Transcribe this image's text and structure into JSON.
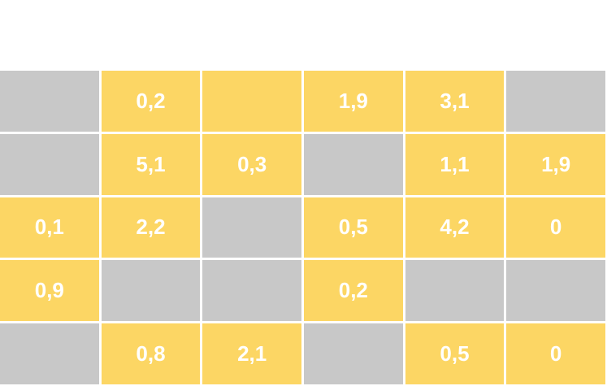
{
  "colors": {
    "filled": "#FCD664",
    "empty": "#C8C8C8"
  },
  "rows": [
    [
      {
        "filled": false,
        "value": ""
      },
      {
        "filled": true,
        "value": "0,2"
      },
      {
        "filled": true,
        "value": ""
      },
      {
        "filled": true,
        "value": "1,9"
      },
      {
        "filled": true,
        "value": "3,1"
      },
      {
        "filled": false,
        "value": ""
      }
    ],
    [
      {
        "filled": false,
        "value": ""
      },
      {
        "filled": true,
        "value": "5,1"
      },
      {
        "filled": true,
        "value": "0,3"
      },
      {
        "filled": false,
        "value": ""
      },
      {
        "filled": true,
        "value": "1,1"
      },
      {
        "filled": true,
        "value": "1,9"
      }
    ],
    [
      {
        "filled": true,
        "value": "0,1"
      },
      {
        "filled": true,
        "value": "2,2"
      },
      {
        "filled": false,
        "value": ""
      },
      {
        "filled": true,
        "value": "0,5"
      },
      {
        "filled": true,
        "value": "4,2"
      },
      {
        "filled": true,
        "value": "0"
      }
    ],
    [
      {
        "filled": true,
        "value": "0,9"
      },
      {
        "filled": false,
        "value": ""
      },
      {
        "filled": false,
        "value": ""
      },
      {
        "filled": true,
        "value": "0,2"
      },
      {
        "filled": false,
        "value": ""
      },
      {
        "filled": false,
        "value": ""
      }
    ],
    [
      {
        "filled": false,
        "value": ""
      },
      {
        "filled": true,
        "value": "0,8"
      },
      {
        "filled": true,
        "value": "2,1"
      },
      {
        "filled": false,
        "value": ""
      },
      {
        "filled": true,
        "value": "0,5"
      },
      {
        "filled": true,
        "value": "0"
      }
    ]
  ]
}
